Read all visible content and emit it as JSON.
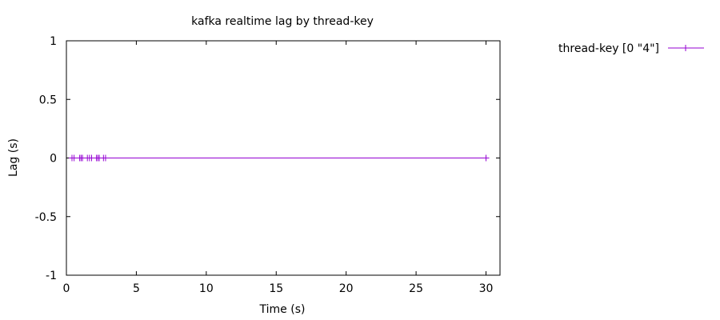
{
  "chart_data": {
    "type": "line",
    "title": "kafka realtime lag by thread-key",
    "xlabel": "Time (s)",
    "ylabel": "Lag (s)",
    "xlim": [
      0,
      31
    ],
    "ylim": [
      -1,
      1
    ],
    "xticks": [
      0,
      5,
      10,
      15,
      20,
      25,
      30
    ],
    "yticks": [
      -1,
      -0.5,
      0,
      0.5,
      1
    ],
    "grid": false,
    "legend_position": "top-right, outside plot",
    "series": [
      {
        "name": "thread-key [0 \"4\"]",
        "color": "#9400d3",
        "marker": "plus",
        "x": [
          0.4,
          0.55,
          0.95,
          1.05,
          1.15,
          1.5,
          1.65,
          1.8,
          2.15,
          2.25,
          2.35,
          2.65,
          2.8,
          30.0
        ],
        "y": [
          0,
          0,
          0,
          0,
          0,
          0,
          0,
          0,
          0,
          0,
          0,
          0,
          0,
          0
        ]
      }
    ]
  }
}
